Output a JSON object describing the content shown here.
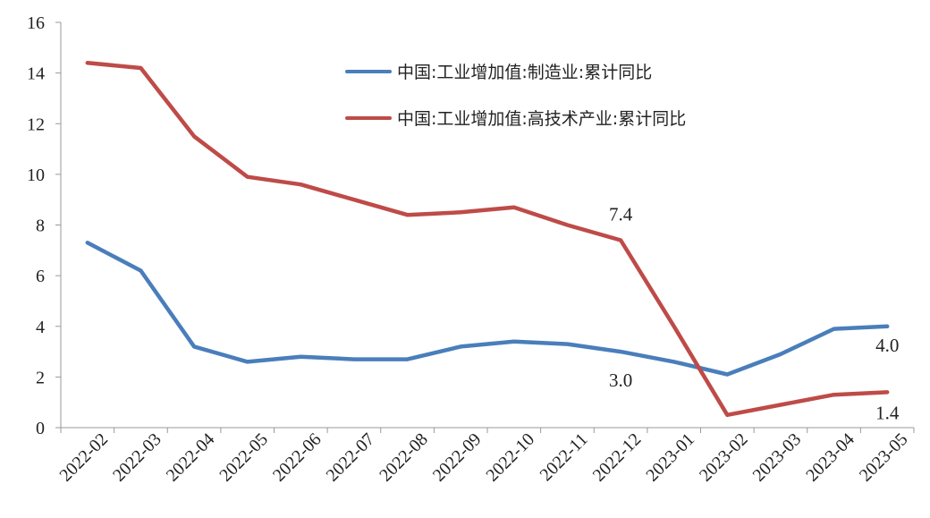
{
  "chart_data": {
    "type": "line",
    "title": "",
    "xlabel": "",
    "ylabel": "",
    "ylim": [
      0,
      16
    ],
    "yticks": [
      "0",
      "2",
      "4",
      "6",
      "8",
      "10",
      "12",
      "14",
      "16"
    ],
    "categories": [
      "2022-02",
      "2022-03",
      "2022-04",
      "2022-05",
      "2022-06",
      "2022-07",
      "2022-08",
      "2022-09",
      "2022-10",
      "2022-11",
      "2022-12",
      "2023-01",
      "2023-02",
      "2023-03",
      "2023-04",
      "2023-05"
    ],
    "grid": false,
    "legend_position": "top-right",
    "series": [
      {
        "name": "中国:工业增加值:制造业:累计同比",
        "color": "#4a7ebb",
        "values": [
          7.3,
          6.2,
          3.2,
          2.6,
          2.8,
          2.7,
          2.7,
          3.2,
          3.4,
          3.3,
          3.0,
          2.6,
          2.1,
          2.9,
          3.9,
          4.0
        ]
      },
      {
        "name": "中国:工业增加值:高技术产业:累计同比",
        "color": "#be4b48",
        "values": [
          14.4,
          14.2,
          11.5,
          9.9,
          9.6,
          9.0,
          8.4,
          8.5,
          8.7,
          8.0,
          7.4,
          4.0,
          0.5,
          0.9,
          1.3,
          1.4
        ]
      }
    ],
    "annotations": [
      {
        "text": "7.4",
        "series": 1,
        "index": 10
      },
      {
        "text": "3.0",
        "series": 0,
        "index": 10
      },
      {
        "text": "4.0",
        "series": 0,
        "index": 15
      },
      {
        "text": "1.4",
        "series": 1,
        "index": 15
      }
    ]
  }
}
